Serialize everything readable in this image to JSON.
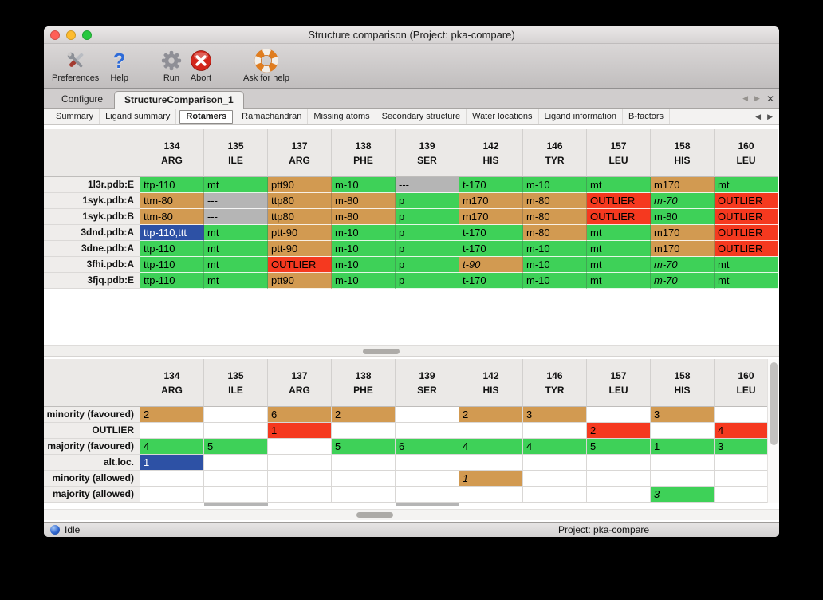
{
  "window": {
    "title": "Structure comparison (Project: pka-compare)"
  },
  "icons": {
    "prev": "◀",
    "next": "▶",
    "close": "✕",
    "help": "?"
  },
  "legend_colors": {
    "majority_favoured": "#3ed158",
    "minority_favoured": "#d29a51",
    "outlier": "#f5391f",
    "missing": "#b5b5b5",
    "alt_loc": "#2d51a5"
  },
  "toolbar": {
    "items": [
      {
        "label": "Preferences",
        "icon": "crossed-tools-icon"
      },
      {
        "label": "Help",
        "icon": "question-mark-icon"
      },
      {
        "label": "Run",
        "icon": "gear-icon"
      },
      {
        "label": "Abort",
        "icon": "red-cross-circle-icon"
      },
      {
        "label": "Ask for help",
        "icon": "lifebuoy-icon"
      }
    ]
  },
  "tabbar": {
    "tabs": [
      {
        "label": "Configure",
        "selected": false
      },
      {
        "label": "StructureComparison_1",
        "selected": true
      }
    ]
  },
  "subtabbar": {
    "tabs": [
      "Summary",
      "Ligand summary",
      "Rotamers",
      "Ramachandran",
      "Missing atoms",
      "Secondary structure",
      "Water locations",
      "Ligand information",
      "B-factors"
    ],
    "selected": "Rotamers"
  },
  "columns": [
    {
      "num": "134",
      "res": "ARG"
    },
    {
      "num": "135",
      "res": "ILE"
    },
    {
      "num": "137",
      "res": "ARG"
    },
    {
      "num": "138",
      "res": "PHE"
    },
    {
      "num": "139",
      "res": "SER"
    },
    {
      "num": "142",
      "res": "HIS"
    },
    {
      "num": "146",
      "res": "TYR"
    },
    {
      "num": "157",
      "res": "LEU"
    },
    {
      "num": "158",
      "res": "HIS"
    },
    {
      "num": "160",
      "res": "LEU"
    }
  ],
  "rotamer_table": {
    "rows": [
      {
        "label": "1l3r.pdb:E",
        "cells": [
          {
            "t": "ttp-110",
            "c": "majority"
          },
          {
            "t": "mt",
            "c": "majority"
          },
          {
            "t": "ptt90",
            "c": "minority"
          },
          {
            "t": "m-10",
            "c": "majority"
          },
          {
            "t": "---",
            "c": "missing"
          },
          {
            "t": "t-170",
            "c": "majority"
          },
          {
            "t": "m-10",
            "c": "majority"
          },
          {
            "t": "mt",
            "c": "majority"
          },
          {
            "t": "m170",
            "c": "minority"
          },
          {
            "t": "mt",
            "c": "majority"
          }
        ]
      },
      {
        "label": "1syk.pdb:A",
        "cells": [
          {
            "t": "ttm-80",
            "c": "minority"
          },
          {
            "t": "---",
            "c": "missing"
          },
          {
            "t": "ttp80",
            "c": "minority"
          },
          {
            "t": "m-80",
            "c": "minority"
          },
          {
            "t": "p",
            "c": "majority"
          },
          {
            "t": "m170",
            "c": "minority"
          },
          {
            "t": "m-80",
            "c": "minority"
          },
          {
            "t": "OUTLIER",
            "c": "outlier"
          },
          {
            "t": "m-70",
            "c": "majority",
            "i": true
          },
          {
            "t": "OUTLIER",
            "c": "outlier"
          }
        ]
      },
      {
        "label": "1syk.pdb:B",
        "cells": [
          {
            "t": "ttm-80",
            "c": "minority"
          },
          {
            "t": "---",
            "c": "missing"
          },
          {
            "t": "ttp80",
            "c": "minority"
          },
          {
            "t": "m-80",
            "c": "minority"
          },
          {
            "t": "p",
            "c": "majority"
          },
          {
            "t": "m170",
            "c": "minority"
          },
          {
            "t": "m-80",
            "c": "minority"
          },
          {
            "t": "OUTLIER",
            "c": "outlier"
          },
          {
            "t": "m-80",
            "c": "majority"
          },
          {
            "t": "OUTLIER",
            "c": "outlier"
          }
        ]
      },
      {
        "label": "3dnd.pdb:A",
        "cells": [
          {
            "t": "ttp-110,ttt",
            "c": "altloc"
          },
          {
            "t": "mt",
            "c": "majority"
          },
          {
            "t": "ptt-90",
            "c": "minority"
          },
          {
            "t": "m-10",
            "c": "majority"
          },
          {
            "t": "p",
            "c": "majority"
          },
          {
            "t": "t-170",
            "c": "majority"
          },
          {
            "t": "m-80",
            "c": "minority"
          },
          {
            "t": "mt",
            "c": "majority"
          },
          {
            "t": "m170",
            "c": "minority"
          },
          {
            "t": "OUTLIER",
            "c": "outlier"
          }
        ]
      },
      {
        "label": "3dne.pdb:A",
        "cells": [
          {
            "t": "ttp-110",
            "c": "majority"
          },
          {
            "t": "mt",
            "c": "majority"
          },
          {
            "t": "ptt-90",
            "c": "minority"
          },
          {
            "t": "m-10",
            "c": "majority"
          },
          {
            "t": "p",
            "c": "majority"
          },
          {
            "t": "t-170",
            "c": "majority"
          },
          {
            "t": "m-10",
            "c": "majority"
          },
          {
            "t": "mt",
            "c": "majority"
          },
          {
            "t": "m170",
            "c": "minority"
          },
          {
            "t": "OUTLIER",
            "c": "outlier"
          }
        ]
      },
      {
        "label": "3fhi.pdb:A",
        "cells": [
          {
            "t": "ttp-110",
            "c": "majority"
          },
          {
            "t": "mt",
            "c": "majority"
          },
          {
            "t": "OUTLIER",
            "c": "outlier"
          },
          {
            "t": "m-10",
            "c": "majority"
          },
          {
            "t": "p",
            "c": "majority"
          },
          {
            "t": "t-90",
            "c": "minority",
            "i": true
          },
          {
            "t": "m-10",
            "c": "majority"
          },
          {
            "t": "mt",
            "c": "majority"
          },
          {
            "t": "m-70",
            "c": "majority",
            "i": true
          },
          {
            "t": "mt",
            "c": "majority"
          }
        ]
      },
      {
        "label": "3fjq.pdb:E",
        "cells": [
          {
            "t": "ttp-110",
            "c": "majority"
          },
          {
            "t": "mt",
            "c": "majority"
          },
          {
            "t": "ptt90",
            "c": "minority"
          },
          {
            "t": "m-10",
            "c": "majority"
          },
          {
            "t": "p",
            "c": "majority"
          },
          {
            "t": "t-170",
            "c": "majority"
          },
          {
            "t": "m-10",
            "c": "majority"
          },
          {
            "t": "mt",
            "c": "majority"
          },
          {
            "t": "m-70",
            "c": "majority",
            "i": true
          },
          {
            "t": "mt",
            "c": "majority"
          }
        ]
      }
    ]
  },
  "count_table": {
    "rows": [
      {
        "label": "minority (favoured)",
        "cells": [
          {
            "t": "2",
            "c": "minority"
          },
          {
            "t": "",
            "c": "empty"
          },
          {
            "t": "6",
            "c": "minority"
          },
          {
            "t": "2",
            "c": "minority"
          },
          {
            "t": "",
            "c": "empty"
          },
          {
            "t": "2",
            "c": "minority"
          },
          {
            "t": "3",
            "c": "minority"
          },
          {
            "t": "",
            "c": "empty"
          },
          {
            "t": "3",
            "c": "minority"
          },
          {
            "t": "",
            "c": "empty"
          }
        ]
      },
      {
        "label": "OUTLIER",
        "cells": [
          {
            "t": "",
            "c": "empty"
          },
          {
            "t": "",
            "c": "empty"
          },
          {
            "t": "1",
            "c": "outlier"
          },
          {
            "t": "",
            "c": "empty"
          },
          {
            "t": "",
            "c": "empty"
          },
          {
            "t": "",
            "c": "empty"
          },
          {
            "t": "",
            "c": "empty"
          },
          {
            "t": "2",
            "c": "outlier"
          },
          {
            "t": "",
            "c": "empty"
          },
          {
            "t": "4",
            "c": "outlier"
          }
        ]
      },
      {
        "label": "majority (favoured)",
        "cells": [
          {
            "t": "4",
            "c": "majority"
          },
          {
            "t": "5",
            "c": "majority"
          },
          {
            "t": "",
            "c": "empty"
          },
          {
            "t": "5",
            "c": "majority"
          },
          {
            "t": "6",
            "c": "majority"
          },
          {
            "t": "4",
            "c": "majority"
          },
          {
            "t": "4",
            "c": "majority"
          },
          {
            "t": "5",
            "c": "majority"
          },
          {
            "t": "1",
            "c": "majority"
          },
          {
            "t": "3",
            "c": "majority"
          }
        ]
      },
      {
        "label": "alt.loc.",
        "cells": [
          {
            "t": "1",
            "c": "altloc"
          },
          {
            "t": "",
            "c": "empty"
          },
          {
            "t": "",
            "c": "empty"
          },
          {
            "t": "",
            "c": "empty"
          },
          {
            "t": "",
            "c": "empty"
          },
          {
            "t": "",
            "c": "empty"
          },
          {
            "t": "",
            "c": "empty"
          },
          {
            "t": "",
            "c": "empty"
          },
          {
            "t": "",
            "c": "empty"
          },
          {
            "t": "",
            "c": "empty"
          }
        ]
      },
      {
        "label": "minority (allowed)",
        "cells": [
          {
            "t": "",
            "c": "empty"
          },
          {
            "t": "",
            "c": "empty"
          },
          {
            "t": "",
            "c": "empty"
          },
          {
            "t": "",
            "c": "empty"
          },
          {
            "t": "",
            "c": "empty"
          },
          {
            "t": "1",
            "c": "minority",
            "i": true
          },
          {
            "t": "",
            "c": "empty"
          },
          {
            "t": "",
            "c": "empty"
          },
          {
            "t": "",
            "c": "empty"
          },
          {
            "t": "",
            "c": "empty"
          }
        ]
      },
      {
        "label": "majority (allowed)",
        "cells": [
          {
            "t": "",
            "c": "empty"
          },
          {
            "t": "",
            "c": "empty"
          },
          {
            "t": "",
            "c": "empty"
          },
          {
            "t": "",
            "c": "empty"
          },
          {
            "t": "",
            "c": "empty"
          },
          {
            "t": "",
            "c": "empty"
          },
          {
            "t": "",
            "c": "empty"
          },
          {
            "t": "",
            "c": "empty"
          },
          {
            "t": "3",
            "c": "majority",
            "i": true
          },
          {
            "t": "",
            "c": "empty"
          }
        ]
      }
    ],
    "clipped_row": {
      "gray_columns": [
        1,
        4
      ]
    }
  },
  "statusbar": {
    "status": "Idle",
    "project": "Project: pka-compare"
  }
}
